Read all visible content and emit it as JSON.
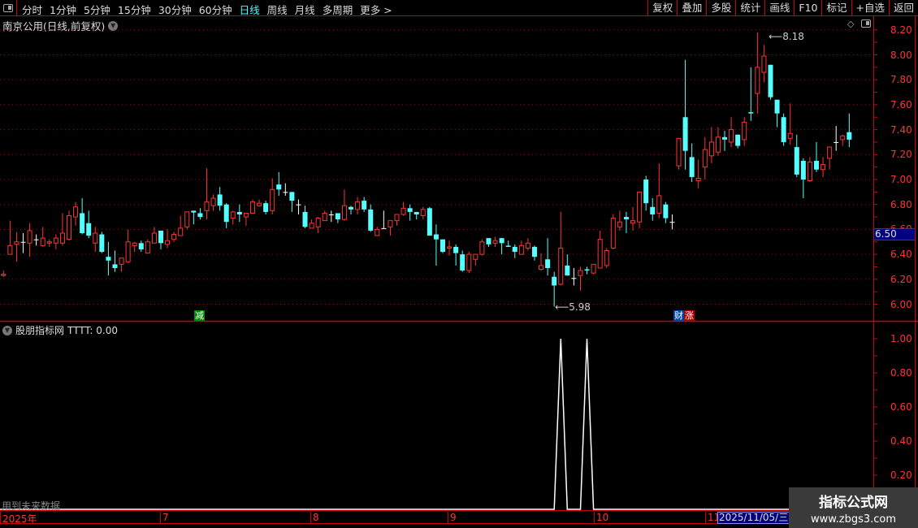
{
  "toolbar": {
    "periods": [
      "分时",
      "1分钟",
      "5分钟",
      "15分钟",
      "30分钟",
      "60分钟",
      "日线",
      "周线",
      "月线",
      "多周期",
      "更多 >"
    ],
    "active_period": "日线",
    "buttons": [
      "复权",
      "叠加",
      "多股",
      "统计",
      "画线",
      "F10",
      "标记",
      "+自选",
      "返回"
    ]
  },
  "main": {
    "title": "南京公用(日线,前复权)",
    "current_price_label": "6.50",
    "high_label": "8.18",
    "low_label": "5.98",
    "price_ticks": [
      "8.20",
      "8.00",
      "7.80",
      "7.60",
      "7.40",
      "7.20",
      "7.00",
      "6.80",
      "6.60",
      "6.40",
      "6.20",
      "6.00"
    ],
    "marks": {
      "jian": "减",
      "cai": "财",
      "zhang": "涨"
    }
  },
  "indicator": {
    "name": "股朋指标网",
    "value_label": "TTTT: 0.00",
    "ticks": [
      "1.00",
      "0.80",
      "0.60",
      "0.40",
      "0.20"
    ],
    "future_text": "用到未来数据"
  },
  "date_axis": {
    "labels": [
      "2025年",
      "7",
      "8",
      "9",
      "10",
      "11"
    ],
    "cursor_date": "2025/11/05/三"
  },
  "watermark": {
    "title": "指标公式网",
    "url": "www.zbgs3.com"
  },
  "colors": {
    "up": "#ff3333",
    "down": "#55ffff",
    "doji": "#ffffff",
    "axis": "#cc0000",
    "indicator_line": "#ffffff"
  },
  "chart_data": {
    "type": "candlestick",
    "ylim": [
      5.9,
      8.25
    ],
    "ohlc": [
      [
        6.23,
        6.27,
        6.22,
        6.24
      ],
      [
        6.4,
        6.67,
        6.4,
        6.47
      ],
      [
        6.48,
        6.58,
        6.34,
        6.5
      ],
      [
        6.5,
        6.57,
        6.41,
        6.5
      ],
      [
        6.49,
        6.65,
        6.38,
        6.59
      ],
      [
        6.52,
        6.56,
        6.47,
        6.52
      ],
      [
        6.47,
        6.62,
        6.46,
        6.53
      ],
      [
        6.49,
        6.52,
        6.46,
        6.5
      ],
      [
        6.49,
        6.56,
        6.44,
        6.53
      ],
      [
        6.49,
        6.73,
        6.47,
        6.57
      ],
      [
        6.52,
        6.75,
        6.51,
        6.71
      ],
      [
        6.7,
        6.82,
        6.63,
        6.78
      ],
      [
        6.73,
        6.85,
        6.56,
        6.57
      ],
      [
        6.65,
        6.75,
        6.53,
        6.55
      ],
      [
        6.49,
        6.62,
        6.42,
        6.57
      ],
      [
        6.56,
        6.58,
        6.41,
        6.42
      ],
      [
        6.38,
        6.5,
        6.23,
        6.35
      ],
      [
        6.32,
        6.43,
        6.26,
        6.29
      ],
      [
        6.32,
        6.37,
        6.26,
        6.37
      ],
      [
        6.34,
        6.6,
        6.33,
        6.5
      ],
      [
        6.47,
        6.5,
        6.42,
        6.49
      ],
      [
        6.49,
        6.51,
        6.42,
        6.44
      ],
      [
        6.41,
        6.52,
        6.41,
        6.5
      ],
      [
        6.49,
        6.62,
        6.49,
        6.57
      ],
      [
        6.59,
        6.59,
        6.44,
        6.49
      ],
      [
        6.48,
        6.6,
        6.45,
        6.51
      ],
      [
        6.52,
        6.58,
        6.5,
        6.56
      ],
      [
        6.55,
        6.71,
        6.55,
        6.61
      ],
      [
        6.62,
        6.74,
        6.6,
        6.74
      ],
      [
        6.75,
        6.75,
        6.64,
        6.735
      ],
      [
        6.73,
        6.77,
        6.68,
        6.7
      ],
      [
        6.75,
        7.09,
        6.68,
        6.82
      ],
      [
        6.79,
        6.88,
        6.75,
        6.85
      ],
      [
        6.88,
        6.94,
        6.75,
        6.79
      ],
      [
        6.8,
        6.81,
        6.61,
        6.66
      ],
      [
        6.69,
        6.75,
        6.64,
        6.74
      ],
      [
        6.74,
        6.8,
        6.66,
        6.72
      ],
      [
        6.7,
        6.73,
        6.63,
        6.73
      ],
      [
        6.73,
        6.84,
        6.73,
        6.82
      ],
      [
        6.79,
        6.84,
        6.78,
        6.81
      ],
      [
        6.81,
        6.83,
        6.72,
        6.74
      ],
      [
        6.75,
        7.01,
        6.72,
        6.92
      ],
      [
        6.96,
        7.06,
        6.87,
        6.92
      ],
      [
        6.9,
        6.97,
        6.87,
        6.9
      ],
      [
        6.9,
        6.9,
        6.74,
        6.83
      ],
      [
        6.8,
        6.84,
        6.72,
        6.8
      ],
      [
        6.74,
        6.79,
        6.61,
        6.62
      ],
      [
        6.61,
        6.68,
        6.61,
        6.65
      ],
      [
        6.62,
        6.7,
        6.57,
        6.69
      ],
      [
        6.67,
        6.75,
        6.67,
        6.73
      ],
      [
        6.72,
        6.75,
        6.66,
        6.72
      ],
      [
        6.73,
        6.73,
        6.65,
        6.68
      ],
      [
        6.68,
        6.92,
        6.67,
        6.79
      ],
      [
        6.78,
        6.79,
        6.72,
        6.76
      ],
      [
        6.76,
        6.86,
        6.72,
        6.82
      ],
      [
        6.83,
        6.86,
        6.74,
        6.76
      ],
      [
        6.76,
        6.8,
        6.58,
        6.59
      ],
      [
        6.55,
        6.62,
        6.55,
        6.6
      ],
      [
        6.61,
        6.75,
        6.61,
        6.61
      ],
      [
        6.62,
        6.67,
        6.55,
        6.67
      ],
      [
        6.67,
        6.72,
        6.63,
        6.72
      ],
      [
        6.72,
        6.82,
        6.71,
        6.77
      ],
      [
        6.77,
        6.8,
        6.67,
        6.74
      ],
      [
        6.74,
        6.74,
        6.68,
        6.72
      ],
      [
        6.71,
        6.78,
        6.68,
        6.76
      ],
      [
        6.77,
        6.78,
        6.55,
        6.55
      ],
      [
        6.56,
        6.64,
        6.31,
        6.52
      ],
      [
        6.52,
        6.52,
        6.41,
        6.42
      ],
      [
        6.45,
        6.51,
        6.39,
        6.46
      ],
      [
        6.46,
        6.48,
        6.31,
        6.41
      ],
      [
        6.4,
        6.43,
        6.26,
        6.27
      ],
      [
        6.27,
        6.42,
        6.25,
        6.4
      ],
      [
        6.36,
        6.4,
        6.31,
        6.4
      ],
      [
        6.4,
        6.52,
        6.39,
        6.5
      ],
      [
        6.53,
        6.53,
        6.46,
        6.48
      ],
      [
        6.49,
        6.54,
        6.46,
        6.51
      ],
      [
        6.53,
        6.53,
        6.4,
        6.49
      ],
      [
        6.47,
        6.51,
        6.46,
        6.46
      ],
      [
        6.46,
        6.48,
        6.37,
        6.42
      ],
      [
        6.4,
        6.51,
        6.4,
        6.47
      ],
      [
        6.45,
        6.53,
        6.43,
        6.49
      ],
      [
        6.46,
        6.47,
        6.35,
        6.38
      ],
      [
        6.28,
        6.41,
        6.27,
        6.31
      ],
      [
        6.36,
        6.53,
        6.23,
        6.29
      ],
      [
        6.22,
        6.26,
        5.98,
        6.15
      ],
      [
        6.16,
        6.74,
        6.15,
        6.45
      ],
      [
        6.31,
        6.4,
        6.23,
        6.23
      ],
      [
        6.21,
        6.29,
        6.15,
        6.21
      ],
      [
        6.23,
        6.3,
        6.11,
        6.27
      ],
      [
        6.28,
        6.3,
        6.24,
        6.27
      ],
      [
        6.25,
        6.32,
        6.24,
        6.32
      ],
      [
        6.29,
        6.59,
        6.29,
        6.52
      ],
      [
        6.31,
        6.45,
        6.29,
        6.43
      ],
      [
        6.45,
        6.72,
        6.44,
        6.69
      ],
      [
        6.62,
        6.75,
        6.59,
        6.66
      ],
      [
        6.7,
        6.74,
        6.57,
        6.68
      ],
      [
        6.65,
        6.78,
        6.59,
        6.67
      ],
      [
        6.66,
        6.9,
        6.61,
        6.9
      ],
      [
        7.0,
        7.03,
        6.75,
        6.81
      ],
      [
        6.78,
        6.85,
        6.67,
        6.72
      ],
      [
        6.73,
        7.13,
        6.69,
        6.87
      ],
      [
        6.8,
        6.82,
        6.65,
        6.69
      ],
      [
        6.66,
        6.72,
        6.6,
        6.66
      ],
      [
        7.11,
        7.33,
        7.08,
        7.33
      ],
      [
        7.5,
        7.96,
        7.08,
        7.23
      ],
      [
        7.18,
        7.29,
        6.98,
        7.02
      ],
      [
        6.99,
        7.16,
        6.93,
        7.01
      ],
      [
        7.1,
        7.34,
        7.0,
        7.24
      ],
      [
        7.19,
        7.42,
        7.13,
        7.3
      ],
      [
        7.22,
        7.42,
        7.19,
        7.34
      ],
      [
        7.34,
        7.39,
        7.23,
        7.32
      ],
      [
        7.3,
        7.5,
        7.26,
        7.4
      ],
      [
        7.36,
        7.36,
        7.25,
        7.27
      ],
      [
        7.32,
        7.5,
        7.27,
        7.46
      ],
      [
        7.54,
        7.9,
        7.47,
        7.53
      ],
      [
        7.69,
        8.18,
        7.53,
        7.9
      ],
      [
        7.86,
        8.08,
        7.78,
        7.99
      ],
      [
        7.92,
        7.92,
        7.64,
        7.66
      ],
      [
        7.64,
        7.64,
        7.42,
        7.53
      ],
      [
        7.5,
        7.53,
        7.27,
        7.3
      ],
      [
        7.33,
        7.61,
        7.28,
        7.37
      ],
      [
        7.26,
        7.36,
        7.02,
        7.04
      ],
      [
        7.15,
        7.17,
        6.85,
        7.0
      ],
      [
        6.99,
        7.18,
        6.98,
        7.14
      ],
      [
        7.15,
        7.3,
        7.06,
        7.08
      ],
      [
        7.08,
        7.18,
        7.02,
        7.12
      ],
      [
        7.17,
        7.26,
        7.08,
        7.26
      ],
      [
        7.3,
        7.43,
        7.23,
        7.3
      ],
      [
        7.32,
        7.36,
        7.27,
        7.35
      ],
      [
        7.38,
        7.53,
        7.26,
        7.32
      ]
    ],
    "indicator_series": {
      "name": "TTTT",
      "nonzero": {
        "86": 1,
        "90": 1
      }
    }
  }
}
